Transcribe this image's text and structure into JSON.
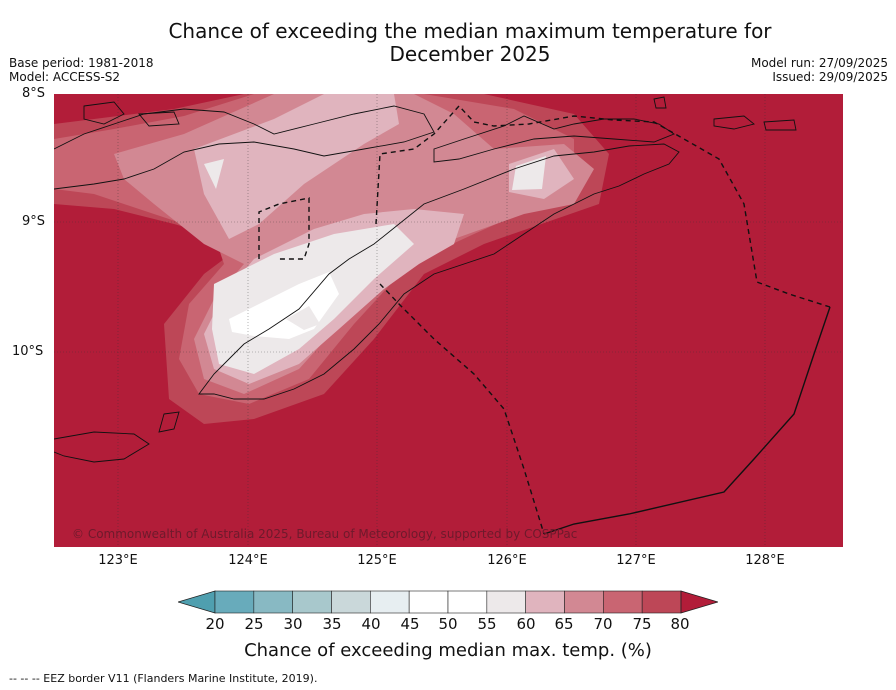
{
  "title": "Chance of exceeding the median maximum temperature for December 2025",
  "title_line1": "Chance of exceeding the median maximum temperature for",
  "title_line2": "December 2025",
  "base_period": "Base period: 1981-2018",
  "model": "Model: ACCESS-S2",
  "model_run": "Model run: 27/09/2025",
  "issued": "Issued: 29/09/2025",
  "copyright": "© Commonwealth of Australia 2025, Bureau of Meteorology, supported by COSPPac",
  "footnote": "--  --  -- EEZ border V11 (Flanders Marine Institute, 2019).",
  "map": {
    "lat_labels": [
      "8°S",
      "9°S",
      "10°S"
    ],
    "lon_labels": [
      "123°E",
      "124°E",
      "125°E",
      "126°E",
      "127°E",
      "128°E"
    ],
    "lon_range": [
      122.5,
      128.6
    ],
    "lat_range": [
      -8.0,
      -11.5
    ],
    "background_value_pct": 80
  },
  "colorbar": {
    "label": "Chance of exceeding median max. temp. (%)",
    "ticks": [
      "20",
      "25",
      "30",
      "35",
      "40",
      "45",
      "50",
      "55",
      "60",
      "65",
      "70",
      "75",
      "80"
    ],
    "colors": [
      "#4f9faf",
      "#68abbb",
      "#88b9c3",
      "#a8c8cc",
      "#cad8da",
      "#e7eef1",
      "#ffffff",
      "#ffffff",
      "#ede9ea",
      "#e0b4be",
      "#d28893",
      "#c96572",
      "#bd4757",
      "#b21d39"
    ]
  }
}
